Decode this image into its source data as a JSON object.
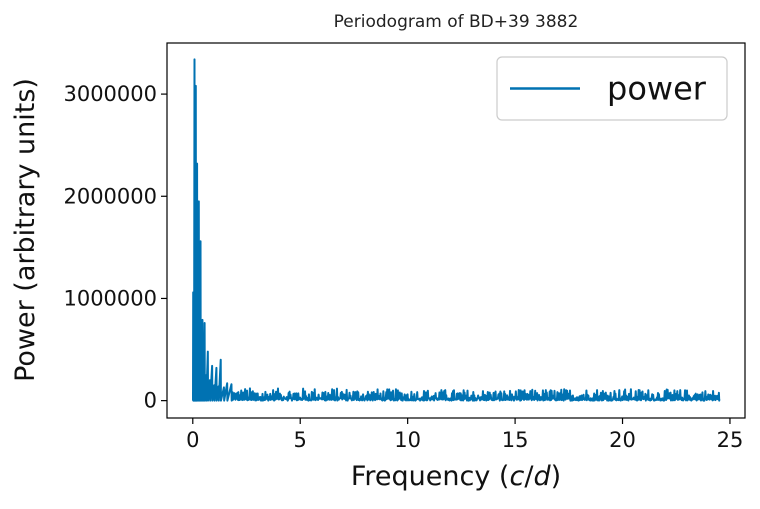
{
  "chart_data": {
    "type": "line",
    "title": "Periodogram of BD+39 3882",
    "xlabel": "Frequency (c/d)",
    "ylabel": "Power (arbitrary units)",
    "xlim": [
      -1.2,
      25.7
    ],
    "ylim": [
      -170000,
      3500000
    ],
    "xticks": [
      0,
      5,
      10,
      15,
      20,
      25
    ],
    "yticks": [
      0,
      1000000,
      2000000,
      3000000
    ],
    "grid": false,
    "legend_position": "top-right",
    "series": [
      {
        "name": "power",
        "color": "#0072b2",
        "peaks": [
          {
            "x": 0.0,
            "y": 0
          },
          {
            "x": 0.02,
            "y": 1060000
          },
          {
            "x": 0.05,
            "y": 600000
          },
          {
            "x": 0.08,
            "y": 3340000
          },
          {
            "x": 0.11,
            "y": 1400000
          },
          {
            "x": 0.14,
            "y": 3080000
          },
          {
            "x": 0.17,
            "y": 900000
          },
          {
            "x": 0.2,
            "y": 2320000
          },
          {
            "x": 0.24,
            "y": 700000
          },
          {
            "x": 0.28,
            "y": 1950000
          },
          {
            "x": 0.32,
            "y": 500000
          },
          {
            "x": 0.36,
            "y": 1560000
          },
          {
            "x": 0.4,
            "y": 350000
          },
          {
            "x": 0.45,
            "y": 790000
          },
          {
            "x": 0.5,
            "y": 300000
          },
          {
            "x": 0.55,
            "y": 760000
          },
          {
            "x": 0.62,
            "y": 250000
          },
          {
            "x": 0.7,
            "y": 480000
          },
          {
            "x": 0.8,
            "y": 200000
          },
          {
            "x": 0.9,
            "y": 340000
          },
          {
            "x": 1.0,
            "y": 150000
          },
          {
            "x": 1.1,
            "y": 320000
          },
          {
            "x": 1.2,
            "y": 140000
          },
          {
            "x": 1.3,
            "y": 400000
          },
          {
            "x": 1.45,
            "y": 130000
          },
          {
            "x": 1.6,
            "y": 170000
          },
          {
            "x": 1.8,
            "y": 160000
          },
          {
            "x": 2.0,
            "y": 110000
          },
          {
            "x": 2.5,
            "y": 130000
          },
          {
            "x": 3.0,
            "y": 115000
          },
          {
            "x": 4.2,
            "y": 120000
          },
          {
            "x": 5.8,
            "y": 125000
          },
          {
            "x": 10.0,
            "y": 110000
          },
          {
            "x": 15.0,
            "y": 105000
          },
          {
            "x": 17.0,
            "y": 115000
          },
          {
            "x": 19.0,
            "y": 120000
          },
          {
            "x": 22.0,
            "y": 110000
          },
          {
            "x": 24.4,
            "y": 105000
          },
          {
            "x": 24.5,
            "y": 0
          }
        ],
        "noise_floor_max": 100000
      }
    ]
  }
}
